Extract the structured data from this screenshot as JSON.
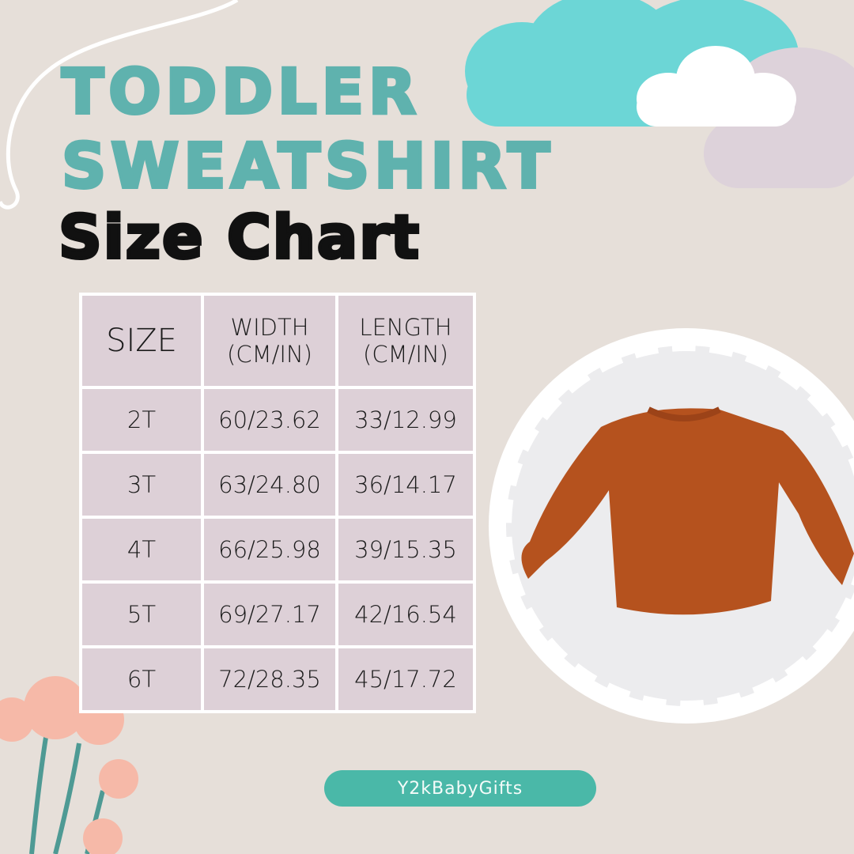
{
  "title": {
    "line1": "TODDLER",
    "line2": "SWEATSHIRT",
    "line3": "Size Chart"
  },
  "table": {
    "headers": [
      "SIZE",
      "WIDTH (CM/IN)",
      "LENGTH (CM/IN)"
    ],
    "header_lines": {
      "width": [
        "WIDTH",
        "(CM/IN)"
      ],
      "length": [
        "LENGTH",
        "(CM/IN)"
      ]
    },
    "rows": [
      [
        "2T",
        "60/23.62",
        "33/12.99"
      ],
      [
        "3T",
        "63/24.80",
        "36/14.17"
      ],
      [
        "4T",
        "66/25.98",
        "39/15.35"
      ],
      [
        "5T",
        "69/27.17",
        "42/16.54"
      ],
      [
        "6T",
        "72/28.35",
        "45/17.72"
      ]
    ]
  },
  "brand": "Y2kBabyGifts",
  "colors": {
    "background": "#e6dfd9",
    "teal": "#5fb2ae",
    "cloud": "#6cd6d6",
    "cell": "#ddd0d7",
    "button": "#4ab8a8",
    "sweatshirt": "#b5521e",
    "flower": "#f6b9a8"
  }
}
